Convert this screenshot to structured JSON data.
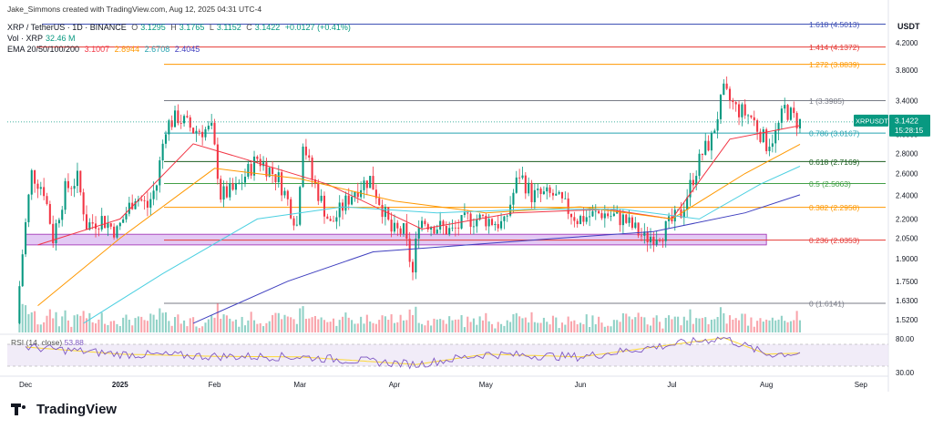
{
  "header": {
    "author": "Jake_Simmons created with TradingView.com, Aug 12, 2025 04:31 UTC-4",
    "pair": "XRP / TetherUS · 1D · BINANCE",
    "o_label": "O",
    "o": "3.1295",
    "h_label": "H",
    "h": "3.1765",
    "l_label": "L",
    "l": "3.1152",
    "c_label": "C",
    "c": "3.1422",
    "change": "+0.0127 (+0.41%)",
    "vol_label": "Vol · XRP",
    "vol": "32.46 M",
    "ema_label": "EMA 20/50/100/200",
    "ema20": "3.1007",
    "ema50": "2.8944",
    "ema100": "2.6708",
    "ema200": "2.4045"
  },
  "colors": {
    "up": "#089981",
    "down": "#f23645",
    "ema20": "#f23645",
    "ema50": "#ff9800",
    "ema100": "#4dd0e1",
    "ema200": "#3f3fbf",
    "fib_1618": "#3f51b5",
    "fib_1414": "#e53935",
    "fib_1272": "#ff9800",
    "fib_1": "#787b86",
    "fib_0786": "#26a3b0",
    "fib_0618": "#1b5e20",
    "fib_05": "#43a047",
    "fib_0382": "#ff9800",
    "fib_0236": "#e53935",
    "fib_0": "#787b86",
    "rsi": "#7e57c2",
    "rsi_ma": "#fdd835",
    "price_tag": "#089981",
    "support_zone": "#d9b8f0"
  },
  "price_axis": {
    "title": "USDT"
  },
  "price_tag": {
    "symbol": "XRPUSDT",
    "price": "3.1422",
    "countdown": "15:28:15"
  },
  "rsi": {
    "label": "RSI (14, close)",
    "value": "53.88",
    "upper": "80.00",
    "lower": "30.00"
  },
  "footer": {
    "brand": "TradingView"
  },
  "chart_data": {
    "type": "candlestick",
    "symbol": "XRP / TetherUS",
    "interval": "1D",
    "exchange": "BINANCE",
    "ylim": [
      1.45,
      4.6
    ],
    "y_scale": "log",
    "y_ticks": [
      "4.2000",
      "3.8000",
      "3.4000",
      "3.0000",
      "2.8000",
      "2.6000",
      "2.4000",
      "2.2000",
      "2.0500",
      "1.9000",
      "1.7500",
      "1.6300",
      "1.5200"
    ],
    "x_ticks": [
      "Dec",
      "2025",
      "Feb",
      "Mar",
      "Apr",
      "May",
      "Jun",
      "Jul",
      "Aug",
      "Sep"
    ],
    "x_range": [
      "2024-11-25",
      "2025-09-10"
    ],
    "fib_levels": [
      {
        "ratio": "1.618",
        "value": 4.5013,
        "label": "1.618 (4.5013)"
      },
      {
        "ratio": "1.414",
        "value": 4.1372,
        "label": "1.414 (4.1372)"
      },
      {
        "ratio": "1.272",
        "value": 3.8839,
        "label": "1.272 (3.8839)"
      },
      {
        "ratio": "1",
        "value": 3.3985,
        "label": "1 (3.3985)"
      },
      {
        "ratio": "0.786",
        "value": 3.0167,
        "label": "0.786 (3.0167)"
      },
      {
        "ratio": "0.618",
        "value": 2.7169,
        "label": "0.618 (2.7169)"
      },
      {
        "ratio": "0.5",
        "value": 2.5063,
        "label": "0.5 (2.5063)"
      },
      {
        "ratio": "0.382",
        "value": 2.2958,
        "label": "0.382 (2.2958)"
      },
      {
        "ratio": "0.236",
        "value": 2.0353,
        "label": "0.236 (2.0353)"
      },
      {
        "ratio": "0",
        "value": 1.6141,
        "label": "0 (1.6141)"
      }
    ],
    "support_zone": {
      "from": "2024-12-01",
      "to": "2025-08-01",
      "low": 2.0,
      "high": 2.08
    },
    "last_price": 3.1422,
    "price_path": [
      [
        "2024-11-28",
        1.5
      ],
      [
        "2024-12-03",
        2.6
      ],
      [
        "2024-12-07",
        2.45
      ],
      [
        "2024-12-10",
        2.05
      ],
      [
        "2024-12-14",
        2.45
      ],
      [
        "2024-12-18",
        2.55
      ],
      [
        "2024-12-21",
        2.15
      ],
      [
        "2024-12-26",
        2.2
      ],
      [
        "2024-12-31",
        2.1
      ],
      [
        "2025-01-06",
        2.4
      ],
      [
        "2025-01-10",
        2.3
      ],
      [
        "2025-01-13",
        2.5
      ],
      [
        "2025-01-16",
        3.1
      ],
      [
        "2025-01-20",
        3.2
      ],
      [
        "2025-01-25",
        3.05
      ],
      [
        "2025-01-31",
        3.05
      ],
      [
        "2025-02-03",
        2.4
      ],
      [
        "2025-02-08",
        2.45
      ],
      [
        "2025-02-15",
        2.75
      ],
      [
        "2025-02-22",
        2.55
      ],
      [
        "2025-02-28",
        2.15
      ],
      [
        "2025-03-02",
        2.95
      ],
      [
        "2025-03-05",
        2.55
      ],
      [
        "2025-03-11",
        2.15
      ],
      [
        "2025-03-19",
        2.45
      ],
      [
        "2025-03-24",
        2.55
      ],
      [
        "2025-03-31",
        2.1
      ],
      [
        "2025-04-04",
        2.1
      ],
      [
        "2025-04-07",
        1.8
      ],
      [
        "2025-04-09",
        2.2
      ],
      [
        "2025-04-14",
        2.15
      ],
      [
        "2025-04-20",
        2.1
      ],
      [
        "2025-04-25",
        2.2
      ],
      [
        "2025-05-01",
        2.2
      ],
      [
        "2025-05-07",
        2.15
      ],
      [
        "2025-05-12",
        2.6
      ],
      [
        "2025-05-16",
        2.4
      ],
      [
        "2025-05-23",
        2.4
      ],
      [
        "2025-05-31",
        2.2
      ],
      [
        "2025-06-08",
        2.25
      ],
      [
        "2025-06-15",
        2.2
      ],
      [
        "2025-06-22",
        2.05
      ],
      [
        "2025-06-28",
        2.1
      ],
      [
        "2025-07-04",
        2.25
      ],
      [
        "2025-07-11",
        2.8
      ],
      [
        "2025-07-14",
        2.95
      ],
      [
        "2025-07-18",
        3.5
      ],
      [
        "2025-07-22",
        3.3
      ],
      [
        "2025-07-27",
        3.2
      ],
      [
        "2025-08-01",
        2.9
      ],
      [
        "2025-08-04",
        3.0
      ],
      [
        "2025-08-07",
        3.3
      ],
      [
        "2025-08-11",
        3.15
      ],
      [
        "2025-08-12",
        3.14
      ]
    ],
    "ema_paths": {
      "EMA 20": [
        [
          "2024-12-05",
          2.0
        ],
        [
          "2025-01-01",
          2.2
        ],
        [
          "2025-01-25",
          2.9
        ],
        [
          "2025-02-10",
          2.75
        ],
        [
          "2025-03-10",
          2.5
        ],
        [
          "2025-04-10",
          2.12
        ],
        [
          "2025-05-10",
          2.25
        ],
        [
          "2025-06-10",
          2.28
        ],
        [
          "2025-07-01",
          2.2
        ],
        [
          "2025-07-20",
          2.95
        ],
        [
          "2025-08-12",
          3.1007
        ]
      ],
      "EMA 50": [
        [
          "2024-12-05",
          1.6
        ],
        [
          "2025-01-01",
          2.05
        ],
        [
          "2025-02-01",
          2.65
        ],
        [
          "2025-03-01",
          2.55
        ],
        [
          "2025-04-01",
          2.35
        ],
        [
          "2025-05-01",
          2.25
        ],
        [
          "2025-06-01",
          2.3
        ],
        [
          "2025-07-01",
          2.2
        ],
        [
          "2025-07-25",
          2.6
        ],
        [
          "2025-08-12",
          2.8944
        ]
      ],
      "EMA 100": [
        [
          "2024-12-20",
          1.5
        ],
        [
          "2025-01-15",
          1.8
        ],
        [
          "2025-02-15",
          2.2
        ],
        [
          "2025-03-15",
          2.3
        ],
        [
          "2025-04-15",
          2.25
        ],
        [
          "2025-05-15",
          2.28
        ],
        [
          "2025-06-15",
          2.28
        ],
        [
          "2025-07-10",
          2.2
        ],
        [
          "2025-07-30",
          2.5
        ],
        [
          "2025-08-12",
          2.6708
        ]
      ],
      "EMA 200": [
        [
          "2025-01-25",
          1.5
        ],
        [
          "2025-02-25",
          1.75
        ],
        [
          "2025-03-25",
          1.95
        ],
        [
          "2025-04-25",
          2.0
        ],
        [
          "2025-05-25",
          2.05
        ],
        [
          "2025-06-25",
          2.1
        ],
        [
          "2025-07-25",
          2.25
        ],
        [
          "2025-08-12",
          2.4045
        ]
      ]
    },
    "rsi_series": [
      [
        "2024-12-01",
        65
      ],
      [
        "2025-01-01",
        52
      ],
      [
        "2025-02-01",
        48
      ],
      [
        "2025-03-01",
        47
      ],
      [
        "2025-04-08",
        33
      ],
      [
        "2025-05-01",
        52
      ],
      [
        "2025-06-01",
        47
      ],
      [
        "2025-07-18",
        82
      ],
      [
        "2025-08-01",
        52
      ],
      [
        "2025-08-12",
        53.88
      ]
    ]
  }
}
